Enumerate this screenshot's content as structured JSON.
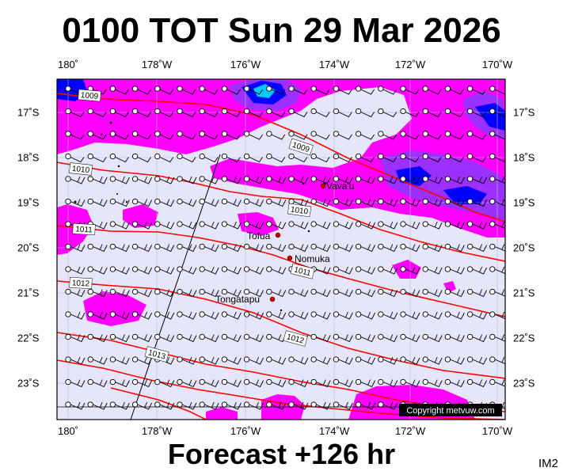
{
  "title": "0100 TOT Sun 29 Mar 2026",
  "footer": "Forecast +126 hr",
  "corner_label": "IM2",
  "copyright": "Copyright metvuw.com",
  "lon_labels": [
    "180˚",
    "178˚W",
    "176˚W",
    "174˚W",
    "172˚W",
    "170˚W"
  ],
  "lat_labels": [
    "17˚S",
    "18˚S",
    "19˚S",
    "20˚S",
    "21˚S",
    "22˚S",
    "23˚S"
  ],
  "places": [
    {
      "name": "Vava'u",
      "lon": -174.0,
      "lat": -18.65
    },
    {
      "name": "Tofua",
      "lon": -175.07,
      "lat": -19.72
    },
    {
      "name": "Nomuka",
      "lon": -174.8,
      "lat": -20.25
    },
    {
      "name": "Tongatapu",
      "lon": -175.2,
      "lat": -21.15
    }
  ],
  "isobar_labels": [
    "1009",
    "1009",
    "1010",
    "1010",
    "1011",
    "1011",
    "1012",
    "1012",
    "1013"
  ],
  "colors": {
    "ocean": "#e6e6fa",
    "rain_light": "#ff00ff",
    "rain_mid": "#9b30ff",
    "rain_heavy": "#0000ff",
    "rain_peak": "#00c8ff",
    "isobar": "#ff0000",
    "place_marker": "#cc0000"
  }
}
